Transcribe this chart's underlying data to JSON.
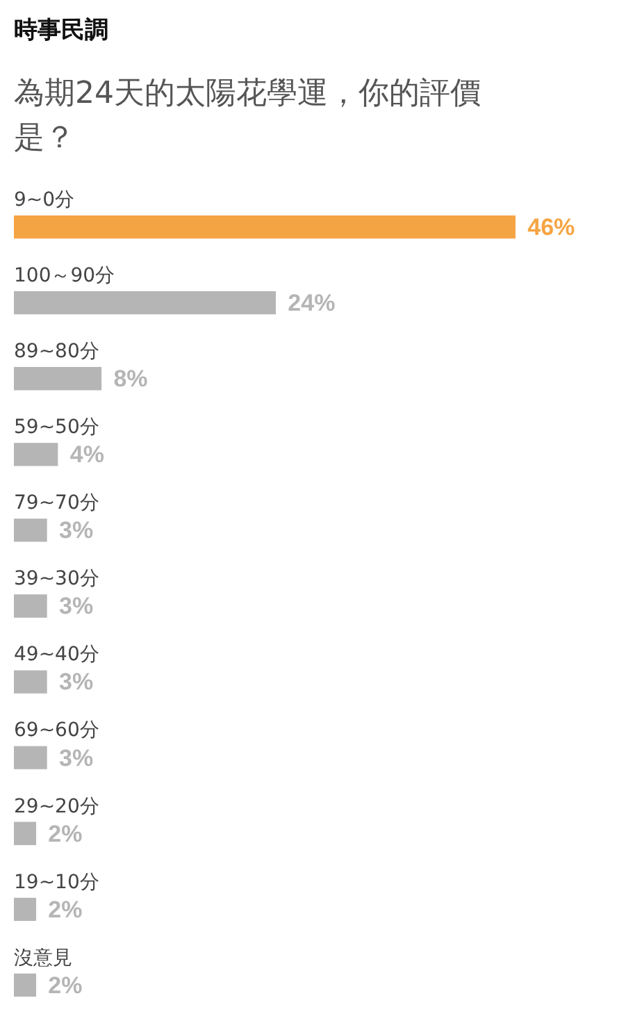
{
  "chart_data": {
    "type": "bar",
    "orientation": "horizontal",
    "title": "時事民調",
    "subtitle": "為期24天的太陽花學運，你的評價是？",
    "categories": [
      "9~0分",
      "100～90分",
      "89~80分",
      "59~50分",
      "79~70分",
      "39~30分",
      "49~40分",
      "69~60分",
      "29~20分",
      "19~10分",
      "沒意見"
    ],
    "values": [
      46,
      24,
      8,
      4,
      3,
      3,
      3,
      3,
      2,
      2,
      2
    ],
    "value_labels": [
      "46%",
      "24%",
      "8%",
      "4%",
      "3%",
      "3%",
      "3%",
      "3%",
      "2%",
      "2%",
      "2%"
    ],
    "colors": [
      "#f5a443",
      "#b5b5b5",
      "#b5b5b5",
      "#b5b5b5",
      "#b5b5b5",
      "#b5b5b5",
      "#b5b5b5",
      "#b5b5b5",
      "#b5b5b5",
      "#b5b5b5",
      "#b5b5b5"
    ],
    "legend": false,
    "tick_labels": false
  }
}
